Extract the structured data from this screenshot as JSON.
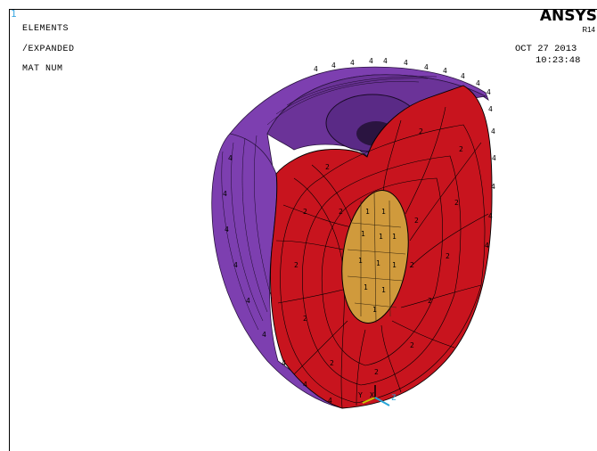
{
  "window": {
    "number": "1",
    "plot_labels": [
      "ELEMENTS",
      "/EXPANDED",
      "MAT  NUM"
    ],
    "brand": "ANSYS",
    "release": "R14",
    "date": "OCT 27 2013",
    "time": "10:23:48"
  },
  "model": {
    "material_labels": {
      "outer_shell": "4",
      "cut_face": "2",
      "core": "1"
    },
    "colors": {
      "outer_shell": "#7d3fb0",
      "outer_shell_dark": "#5a2a86",
      "cut_face": "#c8141e",
      "core": "#d09a3c",
      "mesh_line": "#000000",
      "triad_x": "#000000",
      "triad_y": "#c8c800",
      "triad_z": "#27a6d8"
    }
  },
  "triad": {
    "x_label": "X",
    "y_label": "Y",
    "z_label": "Z"
  }
}
